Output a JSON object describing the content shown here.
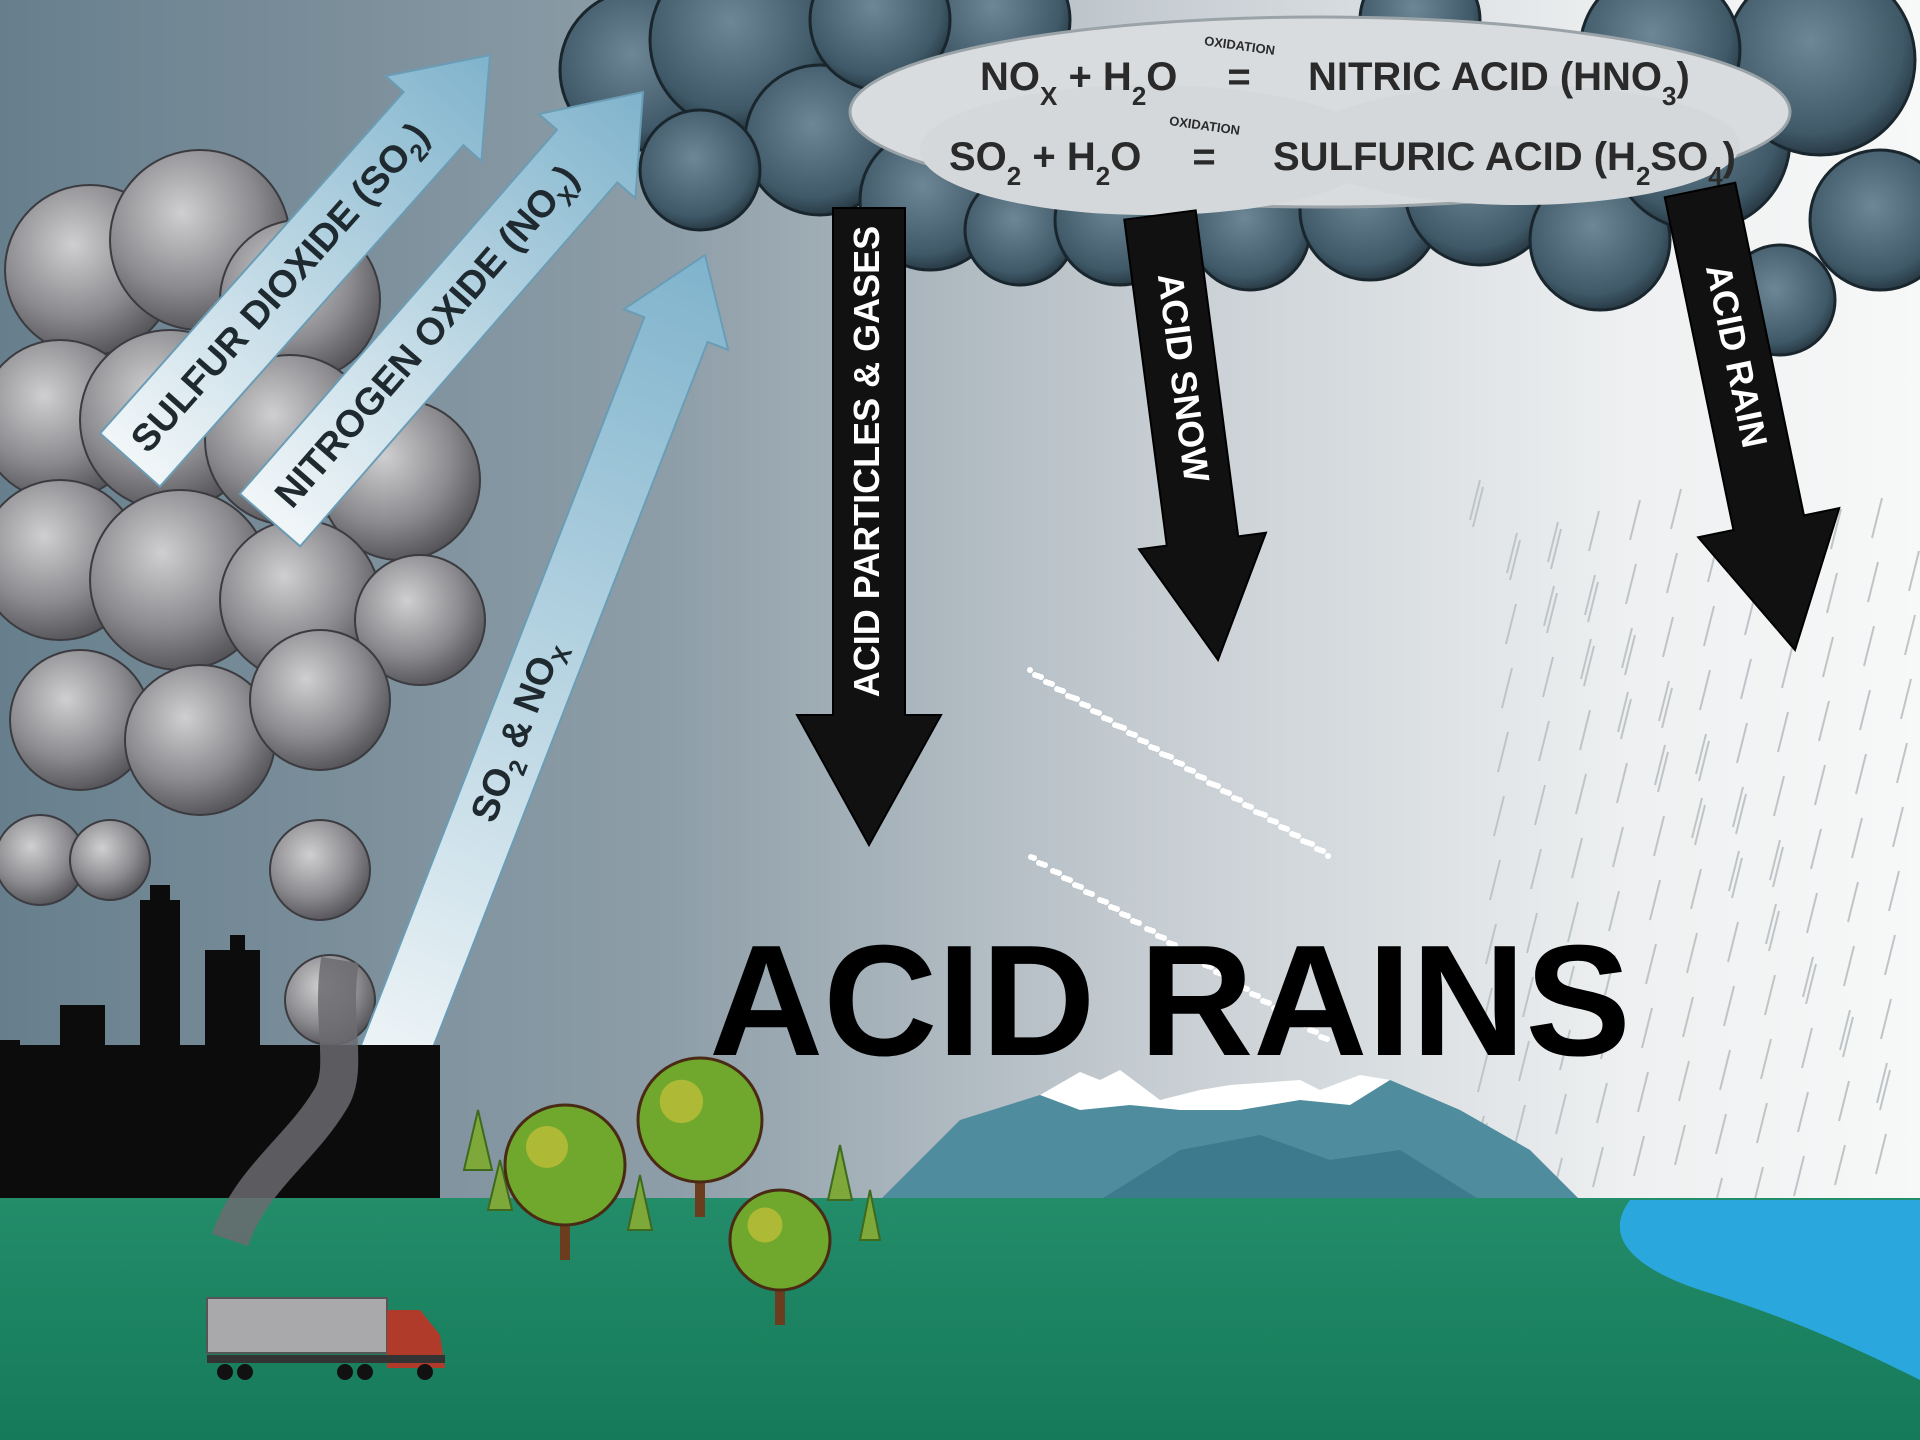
{
  "title": "ACID RAINS",
  "equations": [
    {
      "left": [
        "NO",
        "X",
        " + H",
        "2",
        "O"
      ],
      "oxidation": "OXIDATION",
      "equals": "=",
      "right": [
        "NITRIC ACID (HNO",
        "3",
        ")"
      ]
    },
    {
      "left": [
        "SO",
        "2",
        " + H",
        "2",
        "O"
      ],
      "oxidation": "OXIDATION",
      "equals": "=",
      "right": [
        "SULFURIC ACID (H",
        "2",
        "SO",
        "4",
        ")"
      ]
    }
  ],
  "emissions": [
    {
      "label": [
        "SULFUR DIOXIDE (SO",
        "2",
        ")"
      ]
    },
    {
      "label": [
        "NITROGEN OXIDE (NO",
        "X",
        ")"
      ]
    },
    {
      "label": [
        "SO",
        "2",
        " & NO",
        "X"
      ]
    }
  ],
  "depositions": [
    {
      "label": [
        "ACID PARTICLES & GASES"
      ]
    },
    {
      "label": [
        "ACID SNOW"
      ]
    },
    {
      "label": [
        "ACID RAIN"
      ]
    }
  ]
}
